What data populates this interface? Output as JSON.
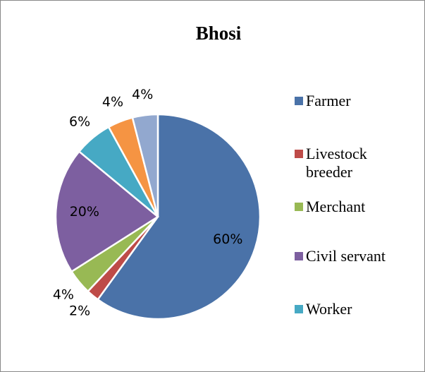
{
  "chart_data": {
    "type": "pie",
    "title": "Bhosi",
    "categories": [
      "Farmer",
      "Livestock breeder",
      "Merchant",
      "Civil servant",
      "Worker",
      null,
      null
    ],
    "values": [
      60,
      2,
      4,
      20,
      6,
      4,
      4
    ],
    "value_labels": [
      "60%",
      "2%",
      "4%",
      "20%",
      "6%",
      "4%",
      "4%"
    ],
    "colors": [
      "#4a72a8",
      "#be4b48",
      "#98b954",
      "#7d5fa0",
      "#46a9c4",
      "#f59443",
      "#92a8cf"
    ]
  }
}
